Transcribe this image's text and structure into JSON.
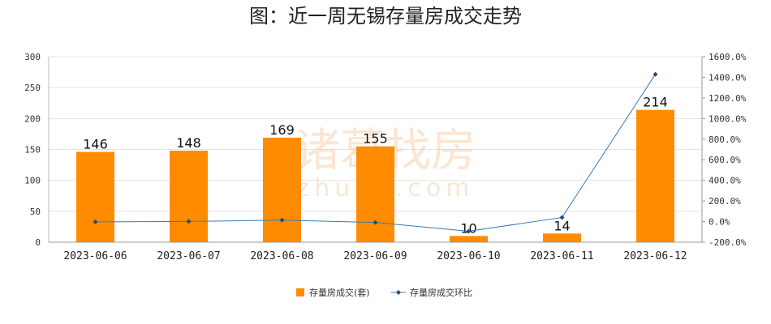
{
  "chart_data": {
    "type": "bar",
    "title": "图：近一周无锡存量房成交走势",
    "categories": [
      "2023-06-06",
      "2023-06-07",
      "2023-06-08",
      "2023-06-09",
      "2023-06-10",
      "2023-06-11",
      "2023-06-12"
    ],
    "series": [
      {
        "name": "存量房成交(套)",
        "type": "bar",
        "axis": "left",
        "values": [
          146,
          148,
          169,
          155,
          10,
          14,
          214
        ],
        "color": "#ff8c00"
      },
      {
        "name": "存量房成交环比",
        "type": "line",
        "axis": "right",
        "values": [
          -2.9,
          1.4,
          14.2,
          -8.3,
          -93.5,
          40.0,
          1428.6
        ],
        "color": "#3b78b8"
      }
    ],
    "y_left": {
      "min": 0,
      "max": 300,
      "ticks": [
        0,
        50,
        100,
        150,
        200,
        250,
        300
      ]
    },
    "y_right": {
      "min": -200,
      "max": 1600,
      "ticks": [
        "-200.0%",
        "0.0%",
        "200.0%",
        "400.0%",
        "600.0%",
        "800.0%",
        "1000.0%",
        "1200.0%",
        "1400.0%",
        "1600.0%"
      ]
    },
    "grid": true,
    "legend_position": "bottom"
  },
  "watermark": {
    "text": "诸葛找房",
    "sub": "zhuge.com"
  }
}
